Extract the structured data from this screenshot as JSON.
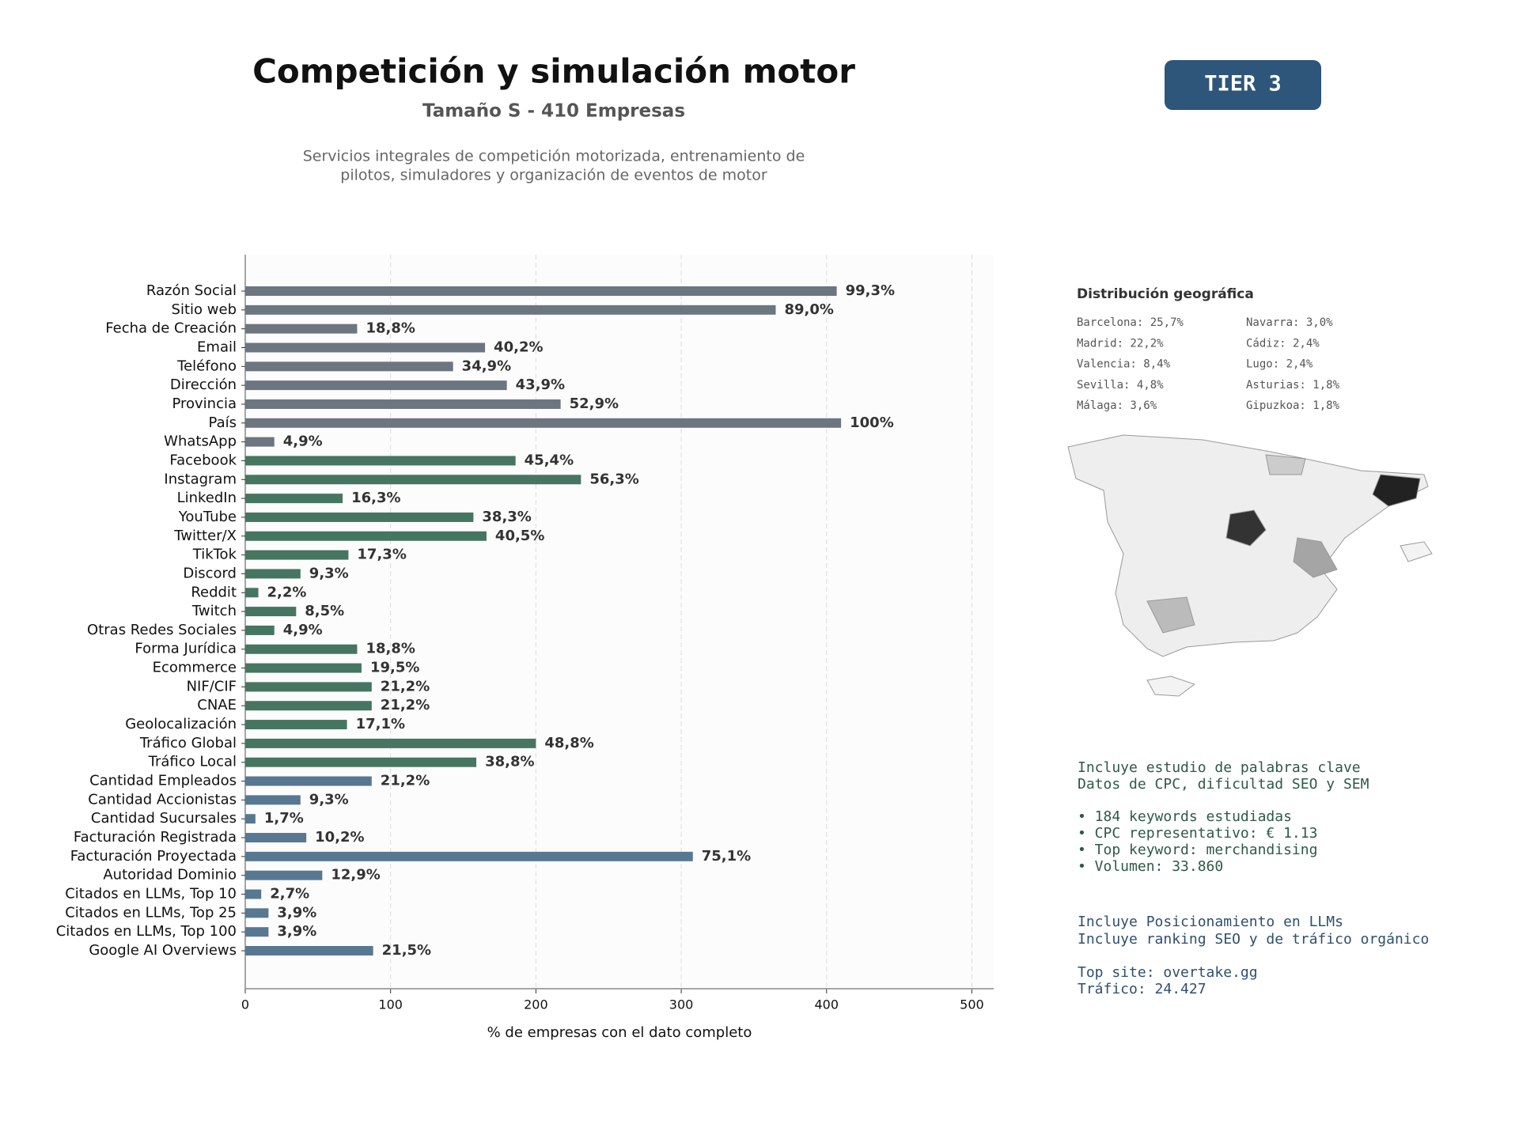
{
  "chart_data": {
    "type": "bar",
    "orientation": "horizontal",
    "title": "Competición y simulación motor",
    "subtitle": "Tamaño S - 410 Empresas",
    "description": [
      "Servicios integrales de competición motorizada, entrenamiento de",
      "pilotos, simuladores y organización de eventos de motor"
    ],
    "xlabel": "% de empresas con el dato completo",
    "categories": [
      "Razón Social",
      "Sitio web",
      "Fecha de Creación",
      "Email",
      "Teléfono",
      "Dirección",
      "Provincia",
      "País",
      "WhatsApp",
      "Facebook",
      "Instagram",
      "LinkedIn",
      "YouTube",
      "Twitter/X",
      "TikTok",
      "Discord",
      "Reddit",
      "Twitch",
      "Otras Redes Sociales",
      "Forma Jurídica",
      "Ecommerce",
      "NIF/CIF",
      "CNAE",
      "Geolocalización",
      "Tráfico Global",
      "Tráfico Local",
      "Cantidad Empleados",
      "Cantidad Accionistas",
      "Cantidad Sucursales",
      "Facturación Registrada",
      "Facturación Proyectada",
      "Autoridad Dominio",
      "Citados en LLMs, Top 10",
      "Citados en LLMs, Top 25",
      "Citados en LLMs, Top 100",
      "Google AI Overviews"
    ],
    "values": [
      407,
      365,
      77,
      165,
      143,
      180,
      217,
      410,
      20,
      186,
      231,
      67,
      157,
      166,
      71,
      38,
      9,
      35,
      20,
      77,
      80,
      87,
      87,
      70,
      200,
      159,
      87,
      38,
      7,
      42,
      308,
      53,
      11,
      16,
      16,
      88
    ],
    "value_labels": [
      "99,3%",
      "89,0%",
      "18,8%",
      "40,2%",
      "34,9%",
      "43,9%",
      "52,9%",
      "100%",
      "4,9%",
      "45,4%",
      "56,3%",
      "16,3%",
      "38,3%",
      "40,5%",
      "17,3%",
      "9,3%",
      "2,2%",
      "8,5%",
      "4,9%",
      "18,8%",
      "19,5%",
      "21,2%",
      "21,2%",
      "17,1%",
      "48,8%",
      "38,8%",
      "21,2%",
      "9,3%",
      "1,7%",
      "10,2%",
      "75,1%",
      "12,9%",
      "2,7%",
      "3,9%",
      "3,9%",
      "21,5%"
    ],
    "colors": [
      "#6c7680",
      "#6c7680",
      "#6c7680",
      "#6c7680",
      "#6c7680",
      "#6c7680",
      "#6c7680",
      "#6c7680",
      "#6c7680",
      "#467561",
      "#467561",
      "#467561",
      "#467561",
      "#467561",
      "#467561",
      "#467561",
      "#467561",
      "#467561",
      "#467561",
      "#467561",
      "#467561",
      "#467561",
      "#467561",
      "#467561",
      "#467561",
      "#467561",
      "#587891",
      "#587891",
      "#587891",
      "#587891",
      "#587891",
      "#587891",
      "#587891",
      "#587891",
      "#587891",
      "#587891"
    ],
    "xlim": [
      0,
      515
    ],
    "xticks": [
      0,
      100,
      200,
      300,
      400,
      500
    ],
    "grid": true
  },
  "badge": "TIER 3",
  "geo": {
    "title": "Distribución geográfica",
    "items": [
      "Barcelona: 25,7%",
      "Madrid: 22,2%",
      "Valencia: 8,4%",
      "Sevilla: 4,8%",
      "Málaga: 3,6%",
      "Navarra: 3,0%",
      "Cádiz: 2,4%",
      "Lugo: 2,4%",
      "Asturias: 1,8%",
      "Gipuzkoa: 1,8%"
    ]
  },
  "keywords": [
    "Incluye estudio de palabras clave",
    "Datos de CPC, dificultad SEO y SEM",
    "• 184 keywords estudiadas",
    "• CPC representativo: € 1.13",
    "• Top keyword: merchandising",
    "• Volumen: 33.860"
  ],
  "llm": [
    "Incluye Posicionamiento en LLMs",
    "Incluye ranking SEO y de tráfico orgánico",
    "Top site: overtake.gg",
    "Tráfico: 24.427"
  ]
}
